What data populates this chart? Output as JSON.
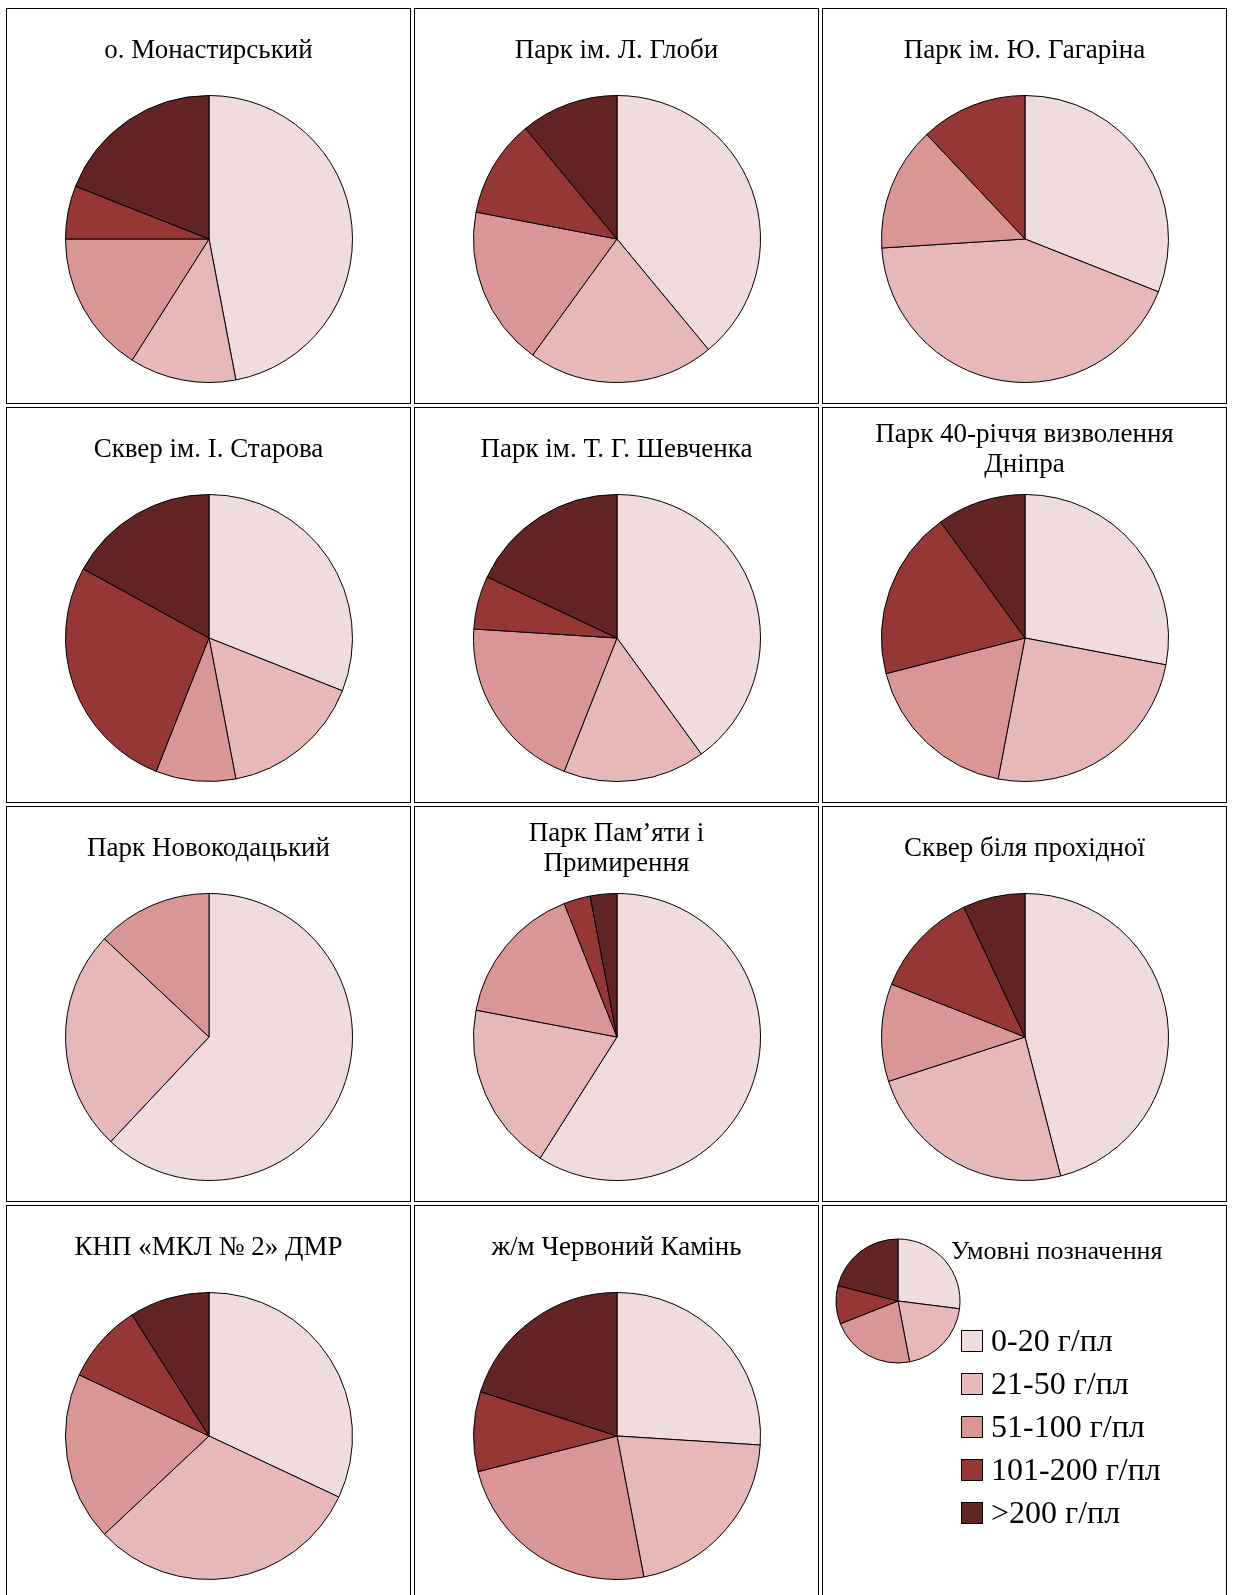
{
  "chart_data": [
    {
      "type": "pie",
      "title": "о. Монастирський",
      "categories": [
        null,
        null,
        null,
        null,
        null
      ],
      "values": [
        47,
        12,
        16,
        6,
        19
      ],
      "colors": [
        "#f0dcdc",
        "#e6b8b8",
        "#d99694",
        "#953735",
        "#632523"
      ]
    },
    {
      "type": "pie",
      "title": "Парк ім. Л. Глоби",
      "categories": [
        null,
        null,
        null,
        null,
        null
      ],
      "values": [
        39,
        21,
        18,
        11,
        11
      ],
      "colors": [
        "#f0dcdc",
        "#e6b8b8",
        "#d99694",
        "#953735",
        "#632523"
      ]
    },
    {
      "type": "pie",
      "title": "Парк ім. Ю. Гагаріна",
      "categories": [
        null,
        null,
        null,
        null,
        null
      ],
      "values": [
        31,
        43,
        14,
        12,
        0
      ],
      "colors": [
        "#f0dcdc",
        "#e6b8b8",
        "#d99694",
        "#953735",
        "#632523"
      ]
    },
    {
      "type": "pie",
      "title": "Сквер ім. І. Старова",
      "categories": [
        null,
        null,
        null,
        null,
        null
      ],
      "values": [
        31,
        16,
        9,
        27,
        17
      ],
      "colors": [
        "#f0dcdc",
        "#e6b8b8",
        "#d99694",
        "#953735",
        "#632523"
      ]
    },
    {
      "type": "pie",
      "title": "Парк ім. Т. Г. Шевченка",
      "categories": [
        null,
        null,
        null,
        null,
        null
      ],
      "values": [
        40,
        16,
        20,
        6,
        18
      ],
      "colors": [
        "#f0dcdc",
        "#e6b8b8",
        "#d99694",
        "#953735",
        "#632523"
      ]
    },
    {
      "type": "pie",
      "title": "Парк 40-річчя визволення Дніпра",
      "categories": [
        null,
        null,
        null,
        null,
        null
      ],
      "values": [
        28,
        25,
        18,
        19,
        10
      ],
      "colors": [
        "#f0dcdc",
        "#e6b8b8",
        "#d99694",
        "#953735",
        "#632523"
      ]
    },
    {
      "type": "pie",
      "title": "Парк Новокодацький",
      "categories": [
        null,
        null,
        null,
        null,
        null
      ],
      "values": [
        62,
        25,
        13,
        0,
        0
      ],
      "colors": [
        "#f0dcdc",
        "#e6b8b8",
        "#d99694",
        "#953735",
        "#632523"
      ]
    },
    {
      "type": "pie",
      "title": "Парк Пам’яти і Примирення",
      "categories": [
        null,
        null,
        null,
        null,
        null
      ],
      "values": [
        59,
        19,
        16,
        3,
        3
      ],
      "colors": [
        "#f0dcdc",
        "#e6b8b8",
        "#d99694",
        "#953735",
        "#632523"
      ]
    },
    {
      "type": "pie",
      "title": "Сквер біля прохідної",
      "categories": [
        null,
        null,
        null,
        null,
        null
      ],
      "values": [
        46,
        24,
        11,
        12,
        7
      ],
      "colors": [
        "#f0dcdc",
        "#e6b8b8",
        "#d99694",
        "#953735",
        "#632523"
      ]
    },
    {
      "type": "pie",
      "title": "КНП «МКЛ № 2» ДМР",
      "categories": [
        null,
        null,
        null,
        null,
        null
      ],
      "values": [
        32,
        31,
        19,
        9,
        9
      ],
      "colors": [
        "#f0dcdc",
        "#e6b8b8",
        "#d99694",
        "#953735",
        "#632523"
      ]
    },
    {
      "type": "pie",
      "title": "ж/м Червоний Камінь",
      "categories": [
        "0-20 г/пл",
        "21-50 г/пл",
        "51-100 г/пл",
        "101-200 г/пл",
        ">200 г/пл"
      ],
      "values": [
        26,
        21,
        24,
        9,
        20
      ],
      "colors": [
        "#f0dcdc",
        "#e6b8b8",
        "#d99694",
        "#953735",
        "#632523"
      ],
      "legend": "right",
      "legend_title": "Умовні позначення"
    }
  ]
}
